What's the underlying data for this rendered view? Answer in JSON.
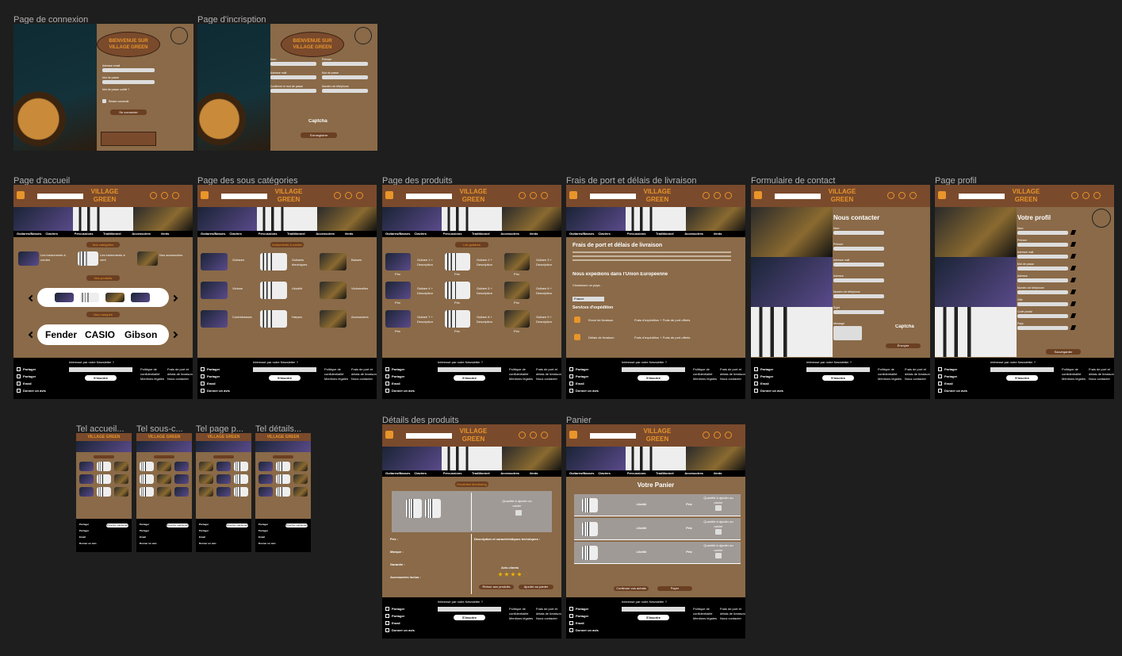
{
  "logo": "VILLAGE GREEN",
  "nav": [
    "Guitares/Basses",
    "Claviers",
    "Percussions",
    "Traditionnel",
    "Accessoires",
    "Vents"
  ],
  "footer": {
    "share": [
      "Partager",
      "Partager",
      "Email",
      "Donner un avis"
    ],
    "newsletter": "Intéressé par notre Newsletter ?",
    "subscribe": "S'inscrire maintenant",
    "links": [
      "Politique de confidentialité",
      "Frais de port et délais de livraison",
      "Mentions légales",
      "Nous contacter"
    ]
  },
  "auth": [
    {
      "label": "Page de connexion",
      "welcome": "BIENVENUE SUR VILLAGE GREEN",
      "fields": [
        "Adresse email",
        "Mot de passe",
        "Mot de passe oublié ?"
      ],
      "remember": "Rester connecté",
      "button": "Se connecter"
    },
    {
      "label": "Page d'incrisption",
      "welcome": "BIENVENUE SUR VILLAGE GREEN",
      "fields": [
        "Nom",
        "Prénom",
        "Adresse mail",
        "Mot de passe",
        "Confirmer le mot de passe",
        "Numéro de téléphone"
      ],
      "captcha": "Captcha",
      "button": "S'enregistrer"
    }
  ],
  "home": {
    "label": "Page d'accueil",
    "sections": [
      "Nos catégories",
      "Nos produits",
      "Nos marques"
    ],
    "items": [
      "Les instruments à cordes",
      "Les instruments à vent",
      "Nos accessoires"
    ],
    "brands": [
      "Fender",
      "CASIO",
      "Gibson"
    ]
  },
  "subcats": {
    "label": "Page des sous catégories",
    "section": "Instruments à cordes",
    "grid": [
      "Guitares",
      "Guitares électriques",
      "Basses",
      "Violons",
      "Ukulélé",
      "Violoncelles",
      "Contrebasses",
      "Harpes",
      "Accessoires"
    ]
  },
  "products": {
    "label": "Page des produits",
    "section": "Les guitares",
    "grid": [
      "Guitare 1 + Description",
      "Guitare 2 + Description",
      "Guitare 3 + Description",
      "Guitare 4 + Description",
      "Guitare 5 + Description",
      "Guitare 6 + Description",
      "Guitare 7 + Description",
      "Guitare 8 + Description",
      "Guitare 9 + Description"
    ],
    "price": "Prix"
  },
  "shipping": {
    "label": "Frais de port et délais de livraison",
    "title": "Frais de port et délais de livraison",
    "subtitle": "Nous expédions dans l'Union Européenne",
    "select": "Choisissez un pays :",
    "country": "France",
    "services": "Services d'expédition",
    "rows": [
      [
        "Envoi de livraison",
        "Frais d'expédition + Frais de port offerts"
      ],
      [
        "Délais de livraison",
        "Frais d'expédition + Frais de port offerts"
      ]
    ]
  },
  "contact": {
    "label": "Formulaire de contact",
    "title": "Nous contacter",
    "fields": [
      "Nom",
      "Prénom",
      "Adresse mail",
      "Adresse",
      "Numéro de téléphone",
      "Sujet",
      "Message"
    ],
    "captcha": "Captcha",
    "button": "Envoyer"
  },
  "profile": {
    "label": "Page profil",
    "title": "Votre profil",
    "fields": [
      "Nom",
      "Prénom",
      "Adresse mail",
      "Mot de passe",
      "Adresse",
      "Numéro de téléphone",
      "Ville",
      "Code postal",
      "Pays"
    ],
    "button": "Sauvegarder"
  },
  "details": {
    "label": "Détails des produits",
    "section": "Enceintes Monitoring",
    "qty": "Quantité à ajouter au panier",
    "specs": [
      "Prix :",
      "Marque :",
      "Garantie :",
      "Accessoires inclus :"
    ],
    "description": "Description et caractéristiques techniques :",
    "reviews": "Avis clients",
    "buttons": [
      "Retour aux produits",
      "Ajouter au panier"
    ]
  },
  "cart": {
    "label": "Panier",
    "title": "Votre Panier",
    "headers": [
      "Libellé",
      "Prix"
    ],
    "qty": "Quantité à ajouter au panier",
    "buttons": [
      "Continuer vos achats",
      "Payer"
    ]
  },
  "mobile": [
    "Tel accueil...",
    "Tel sous-c...",
    "Tel page p...",
    "Tel détails..."
  ]
}
